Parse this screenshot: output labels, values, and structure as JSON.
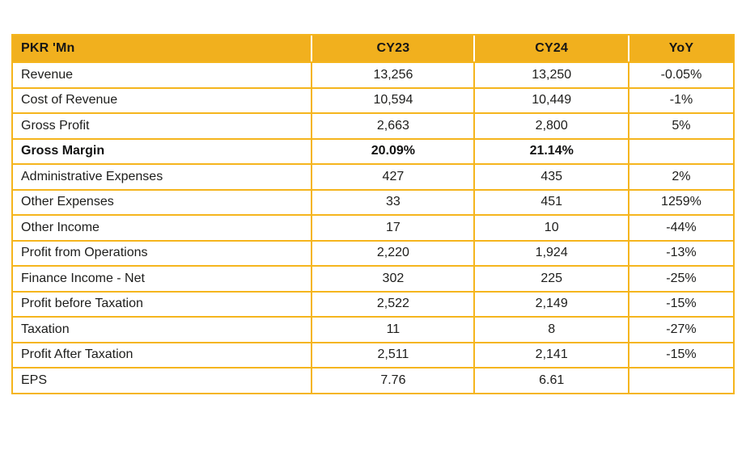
{
  "colors": {
    "header_bg": "#f1b01e",
    "grid_border": "#f5b51d",
    "text": "#1d1d1b",
    "page_bg": "#ffffff"
  },
  "chart_data": {
    "type": "table",
    "title": "Financial results table (PKR 'Mn), CY23 vs CY24 with YoY change",
    "columns": [
      "PKR 'Mn",
      "CY23",
      "CY24",
      "YoY"
    ],
    "rows": [
      {
        "label": "Revenue",
        "cy23": "13,256",
        "cy24": "13,250",
        "yoy": "-0.05%",
        "bold": false
      },
      {
        "label": "Cost of Revenue",
        "cy23": "10,594",
        "cy24": "10,449",
        "yoy": "-1%",
        "bold": false
      },
      {
        "label": "Gross Profit",
        "cy23": "2,663",
        "cy24": "2,800",
        "yoy": "5%",
        "bold": false
      },
      {
        "label": "Gross Margin",
        "cy23": "20.09%",
        "cy24": "21.14%",
        "yoy": "",
        "bold": true
      },
      {
        "label": "Administrative Expenses",
        "cy23": "427",
        "cy24": "435",
        "yoy": "2%",
        "bold": false
      },
      {
        "label": "Other Expenses",
        "cy23": "33",
        "cy24": "451",
        "yoy": "1259%",
        "bold": false
      },
      {
        "label": "Other Income",
        "cy23": "17",
        "cy24": "10",
        "yoy": "-44%",
        "bold": false
      },
      {
        "label": "Profit from Operations",
        "cy23": "2,220",
        "cy24": "1,924",
        "yoy": "-13%",
        "bold": false
      },
      {
        "label": "Finance Income - Net",
        "cy23": "302",
        "cy24": "225",
        "yoy": "-25%",
        "bold": false
      },
      {
        "label": "Profit before Taxation",
        "cy23": "2,522",
        "cy24": "2,149",
        "yoy": "-15%",
        "bold": false
      },
      {
        "label": "Taxation",
        "cy23": "11",
        "cy24": "8",
        "yoy": "-27%",
        "bold": false
      },
      {
        "label": "Profit After Taxation",
        "cy23": "2,511",
        "cy24": "2,141",
        "yoy": "-15%",
        "bold": false
      },
      {
        "label": "EPS",
        "cy23": "7.76",
        "cy24": "6.61",
        "yoy": "",
        "bold": false
      }
    ]
  }
}
